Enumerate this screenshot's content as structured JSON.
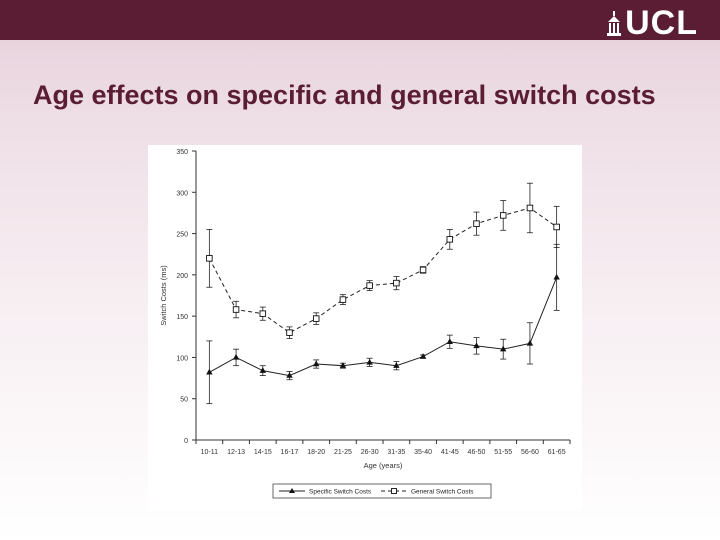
{
  "header": {
    "logo_text": "UCL",
    "accent_color": "#5a1d33"
  },
  "slide": {
    "title": "Age effects on specific and general switch costs"
  },
  "chart_data": {
    "type": "line",
    "xlabel": "Age (years)",
    "ylabel": "Switch Costs (ms)",
    "ylim": [
      0,
      350
    ],
    "yticks": [
      0,
      50,
      100,
      150,
      200,
      250,
      300,
      350
    ],
    "categories": [
      "10-11",
      "12-13",
      "14-15",
      "16-17",
      "18-20",
      "21-25",
      "26-30",
      "31-35",
      "35-40",
      "41-45",
      "46-50",
      "51-55",
      "56-60",
      "61-65"
    ],
    "grid": false,
    "legend_position": "bottom",
    "series": [
      {
        "name": "Specific Switch Costs",
        "marker": "triangle",
        "line_style": "solid",
        "values": [
          82,
          100,
          84,
          78,
          92,
          90,
          94,
          90,
          101,
          119,
          114,
          110,
          117,
          197
        ],
        "errors": [
          38,
          10,
          6,
          5,
          5,
          3,
          5,
          5,
          2,
          8,
          10,
          12,
          25,
          40
        ]
      },
      {
        "name": "General Switch Costs",
        "marker": "square",
        "line_style": "dashed",
        "values": [
          220,
          158,
          153,
          130,
          147,
          170,
          187,
          190,
          206,
          243,
          262,
          272,
          281,
          258
        ],
        "errors": [
          35,
          10,
          8,
          7,
          7,
          6,
          6,
          8,
          4,
          12,
          14,
          18,
          30,
          25
        ]
      }
    ]
  }
}
